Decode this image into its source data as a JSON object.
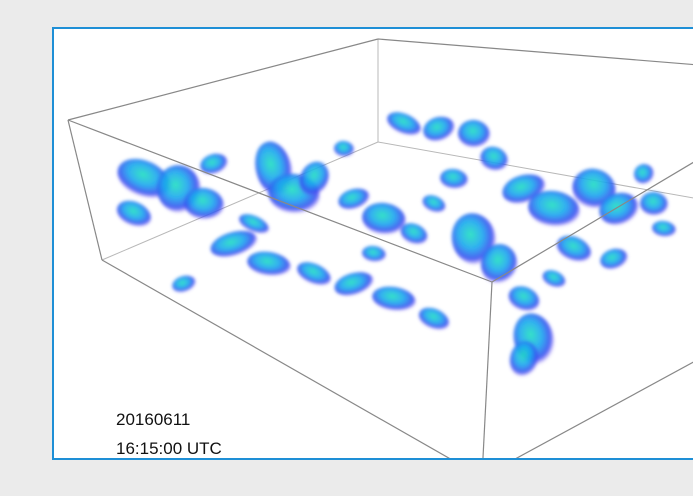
{
  "timestamp": {
    "date": "20160611",
    "time": "16:15:00 UTC"
  }
}
